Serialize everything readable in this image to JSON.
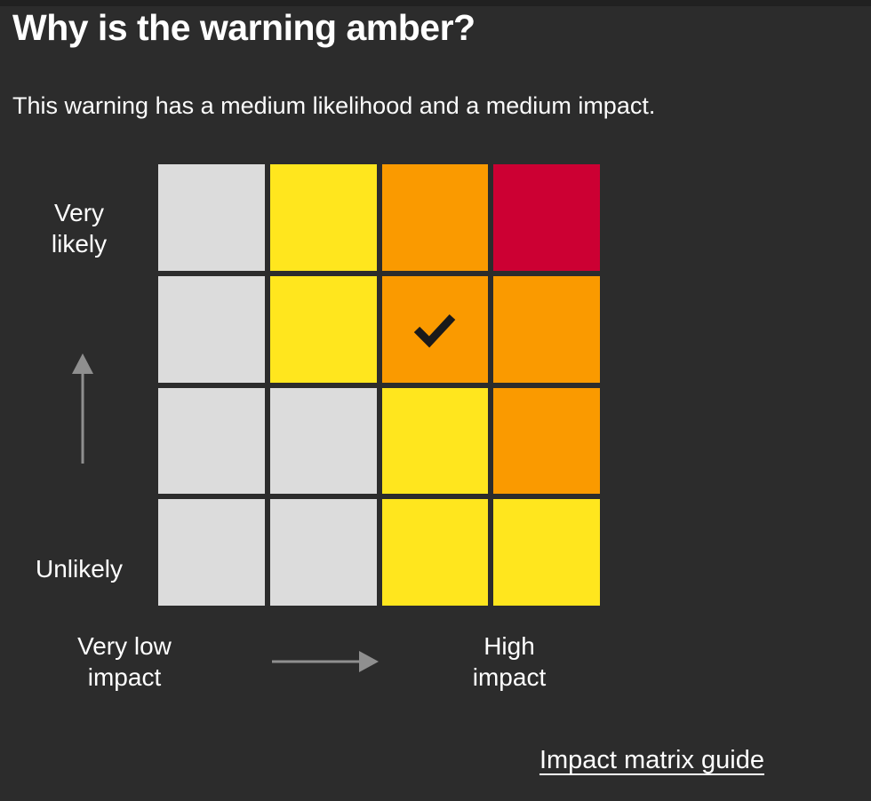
{
  "title": "Why is the warning amber?",
  "subtitle": "This warning has a medium likelihood and a medium impact.",
  "colors": {
    "background": "#2c2c2c",
    "top_strip": "#212121",
    "text": "#ffffff",
    "arrow": "#8f8f8f",
    "check": "#1a1a1a",
    "cells": {
      "grey": "#dcdcdc",
      "yellow": "#ffe61e",
      "orange": "#fa9a00",
      "red": "#cc0033"
    }
  },
  "matrix": {
    "rows": [
      [
        "grey",
        "yellow",
        "orange",
        "red"
      ],
      [
        "grey",
        "yellow",
        "orange",
        "orange"
      ],
      [
        "grey",
        "grey",
        "yellow",
        "orange"
      ],
      [
        "grey",
        "grey",
        "yellow",
        "yellow"
      ]
    ],
    "selected_cell": {
      "row": 1,
      "col": 2
    },
    "likelihood_axis": {
      "top_label": "Very\nlikely",
      "bottom_label": "Unlikely"
    },
    "impact_axis": {
      "left_label": "Very low\nimpact",
      "right_label": "High\nimpact"
    }
  },
  "footer": {
    "link_label": "Impact matrix guide"
  }
}
